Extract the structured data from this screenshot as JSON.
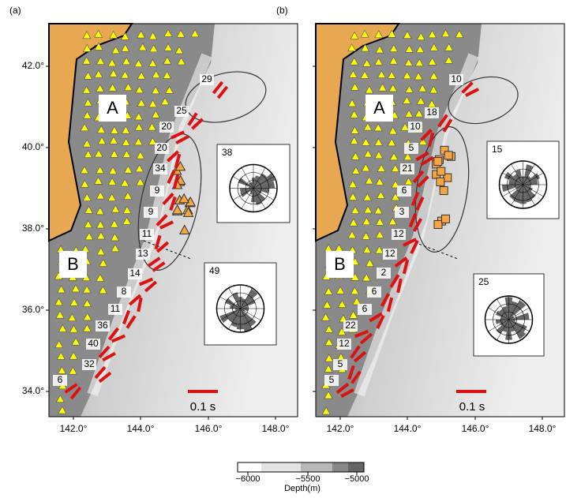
{
  "panels": [
    {
      "label": "(a)",
      "regions": [
        "A",
        "B"
      ],
      "trench_labels": [
        29,
        25,
        20,
        20,
        34,
        9,
        9,
        11,
        13,
        14,
        8,
        11,
        36,
        40,
        32,
        6
      ],
      "rose_counts": [
        38,
        49
      ],
      "scale": "0.1 s"
    },
    {
      "label": "(b)",
      "regions": [
        "A",
        "B"
      ],
      "trench_labels": [
        10,
        18,
        10,
        5,
        21,
        6,
        3,
        12,
        12,
        2,
        6,
        6,
        22,
        12,
        5,
        5
      ],
      "rose_counts": [
        15,
        25
      ],
      "scale": "0.1 s"
    }
  ],
  "lat_ticks": [
    "42.0°",
    "40.0°",
    "38.0°",
    "36.0°",
    "34.0°"
  ],
  "lon_ticks": [
    "142.0°",
    "144.0°",
    "146.0°",
    "148.0°"
  ],
  "colorbar": {
    "ticks": [
      "−6000",
      "−5500",
      "−5000"
    ],
    "title": "Depth(m)"
  }
}
